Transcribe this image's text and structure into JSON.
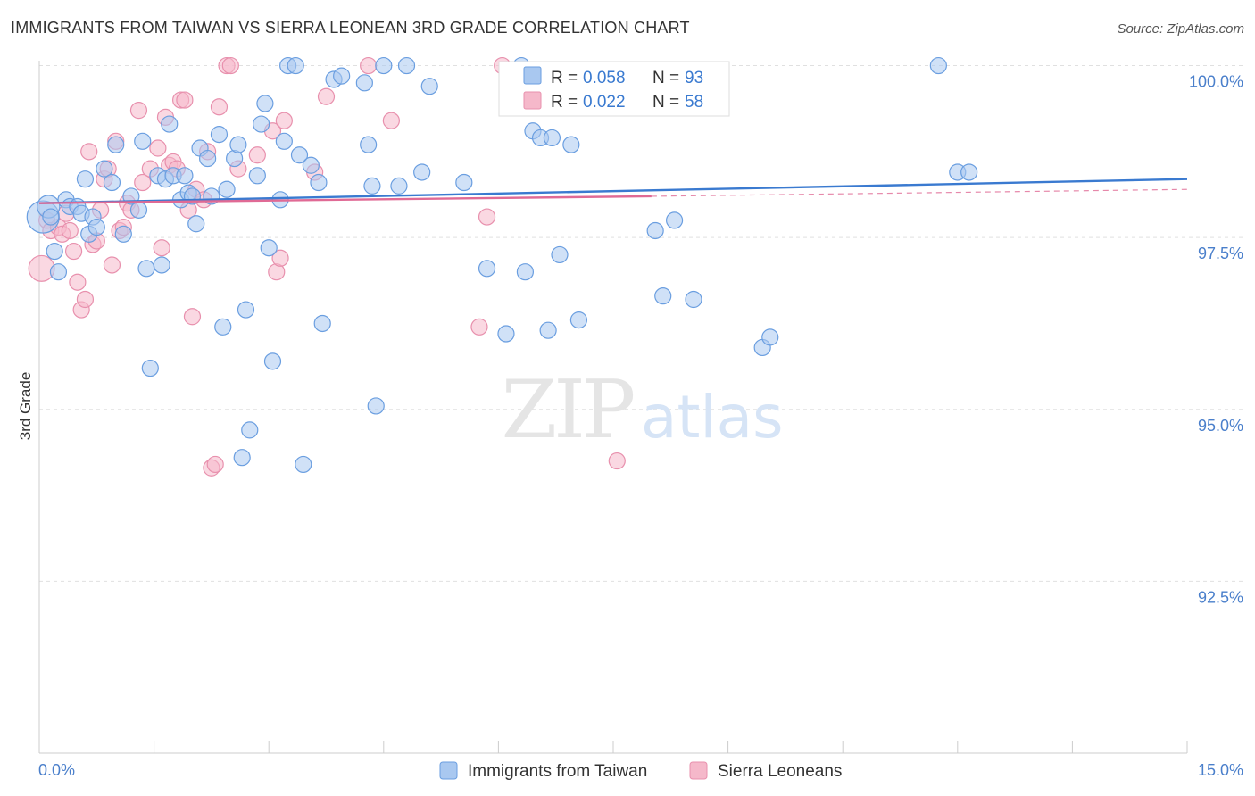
{
  "title": "IMMIGRANTS FROM TAIWAN VS SIERRA LEONEAN 3RD GRADE CORRELATION CHART",
  "source": "Source: ZipAtlas.com",
  "watermark": {
    "zip": "ZIP",
    "atlas": "atlas"
  },
  "colors": {
    "blue_fill": "#a9c8f0",
    "blue_stroke": "#6a9ee0",
    "blue_line": "#3a7ad0",
    "pink_fill": "#f5b8ca",
    "pink_stroke": "#e890ad",
    "pink_line": "#e06a95",
    "axis_label": "#4a7fcb",
    "grid": "#e0e0e0"
  },
  "stats_legend": {
    "rows": [
      {
        "r_label": "R = ",
        "r_value": "0.058",
        "n_label": "N = ",
        "n_value": "93",
        "series": "blue"
      },
      {
        "r_label": "R = ",
        "r_value": "0.022",
        "n_label": "N = ",
        "n_value": "58",
        "series": "pink"
      }
    ]
  },
  "bottom_legend": [
    {
      "label": "Immigrants from Taiwan",
      "series": "blue"
    },
    {
      "label": "Sierra Leoneans",
      "series": "pink"
    }
  ],
  "chart_data": {
    "type": "scatter",
    "title": "IMMIGRANTS FROM TAIWAN VS SIERRA LEONEAN 3RD GRADE CORRELATION CHART",
    "xlabel": "",
    "ylabel": "3rd Grade",
    "xlim": [
      0.0,
      15.0
    ],
    "ylim": [
      90.0,
      100.15
    ],
    "x_tick_labels": [
      "0.0%",
      "15.0%"
    ],
    "y_ticks": [
      92.5,
      95.0,
      97.5,
      100.0
    ],
    "y_tick_labels": [
      "92.5%",
      "95.0%",
      "97.5%",
      "100.0%"
    ],
    "grid": true,
    "series": [
      {
        "name": "Immigrants from Taiwan",
        "color": "blue",
        "trend": {
          "x": [
            0.0,
            15.0
          ],
          "y": [
            98.0,
            98.35
          ]
        },
        "points": [
          {
            "x": 0.05,
            "y": 97.8,
            "s": 2
          },
          {
            "x": 0.12,
            "y": 97.95,
            "s": 1.4
          },
          {
            "x": 0.15,
            "y": 97.8,
            "s": 1
          },
          {
            "x": 0.2,
            "y": 97.3,
            "s": 1
          },
          {
            "x": 0.25,
            "y": 97.0,
            "s": 1
          },
          {
            "x": 0.35,
            "y": 98.05,
            "s": 1
          },
          {
            "x": 0.4,
            "y": 97.95,
            "s": 1
          },
          {
            "x": 0.5,
            "y": 97.95,
            "s": 1
          },
          {
            "x": 0.55,
            "y": 97.85,
            "s": 1
          },
          {
            "x": 0.6,
            "y": 98.35,
            "s": 1
          },
          {
            "x": 0.65,
            "y": 97.55,
            "s": 1
          },
          {
            "x": 0.7,
            "y": 97.8,
            "s": 1
          },
          {
            "x": 0.75,
            "y": 97.65,
            "s": 1
          },
          {
            "x": 0.85,
            "y": 98.5,
            "s": 1
          },
          {
            "x": 0.95,
            "y": 98.3,
            "s": 1
          },
          {
            "x": 1.0,
            "y": 98.85,
            "s": 1
          },
          {
            "x": 1.1,
            "y": 97.55,
            "s": 1
          },
          {
            "x": 1.2,
            "y": 98.1,
            "s": 1
          },
          {
            "x": 1.3,
            "y": 97.9,
            "s": 1
          },
          {
            "x": 1.35,
            "y": 98.9,
            "s": 1
          },
          {
            "x": 1.4,
            "y": 97.05,
            "s": 1
          },
          {
            "x": 1.45,
            "y": 95.6,
            "s": 1
          },
          {
            "x": 1.55,
            "y": 98.4,
            "s": 1
          },
          {
            "x": 1.6,
            "y": 97.1,
            "s": 1
          },
          {
            "x": 1.65,
            "y": 98.35,
            "s": 1
          },
          {
            "x": 1.7,
            "y": 99.15,
            "s": 1
          },
          {
            "x": 1.75,
            "y": 98.4,
            "s": 1
          },
          {
            "x": 1.85,
            "y": 98.05,
            "s": 1
          },
          {
            "x": 1.9,
            "y": 98.4,
            "s": 1
          },
          {
            "x": 1.95,
            "y": 98.15,
            "s": 1
          },
          {
            "x": 2.0,
            "y": 98.1,
            "s": 1
          },
          {
            "x": 2.05,
            "y": 97.7,
            "s": 1
          },
          {
            "x": 2.1,
            "y": 98.8,
            "s": 1
          },
          {
            "x": 2.2,
            "y": 98.65,
            "s": 1
          },
          {
            "x": 2.25,
            "y": 98.1,
            "s": 1
          },
          {
            "x": 2.35,
            "y": 99.0,
            "s": 1
          },
          {
            "x": 2.4,
            "y": 96.2,
            "s": 1
          },
          {
            "x": 2.45,
            "y": 98.2,
            "s": 1
          },
          {
            "x": 2.55,
            "y": 98.65,
            "s": 1
          },
          {
            "x": 2.6,
            "y": 98.85,
            "s": 1
          },
          {
            "x": 2.65,
            "y": 94.3,
            "s": 1
          },
          {
            "x": 2.7,
            "y": 96.45,
            "s": 1
          },
          {
            "x": 2.75,
            "y": 94.7,
            "s": 1
          },
          {
            "x": 2.85,
            "y": 98.4,
            "s": 1
          },
          {
            "x": 2.9,
            "y": 99.15,
            "s": 1
          },
          {
            "x": 2.95,
            "y": 99.45,
            "s": 1
          },
          {
            "x": 3.0,
            "y": 97.35,
            "s": 1
          },
          {
            "x": 3.05,
            "y": 95.7,
            "s": 1
          },
          {
            "x": 3.15,
            "y": 98.05,
            "s": 1
          },
          {
            "x": 3.2,
            "y": 98.9,
            "s": 1
          },
          {
            "x": 3.25,
            "y": 100.0,
            "s": 1
          },
          {
            "x": 3.35,
            "y": 100.0,
            "s": 1
          },
          {
            "x": 3.4,
            "y": 98.7,
            "s": 1
          },
          {
            "x": 3.45,
            "y": 94.2,
            "s": 1
          },
          {
            "x": 3.55,
            "y": 98.55,
            "s": 1
          },
          {
            "x": 3.65,
            "y": 98.3,
            "s": 1
          },
          {
            "x": 3.7,
            "y": 96.25,
            "s": 1
          },
          {
            "x": 3.85,
            "y": 99.8,
            "s": 1
          },
          {
            "x": 3.95,
            "y": 99.85,
            "s": 1
          },
          {
            "x": 4.25,
            "y": 99.75,
            "s": 1
          },
          {
            "x": 4.3,
            "y": 98.85,
            "s": 1
          },
          {
            "x": 4.35,
            "y": 98.25,
            "s": 1
          },
          {
            "x": 4.4,
            "y": 95.05,
            "s": 1
          },
          {
            "x": 4.5,
            "y": 100.0,
            "s": 1
          },
          {
            "x": 4.7,
            "y": 98.25,
            "s": 1
          },
          {
            "x": 4.8,
            "y": 100.0,
            "s": 1
          },
          {
            "x": 5.0,
            "y": 98.45,
            "s": 1
          },
          {
            "x": 5.1,
            "y": 99.7,
            "s": 1
          },
          {
            "x": 5.55,
            "y": 98.3,
            "s": 1
          },
          {
            "x": 5.85,
            "y": 97.05,
            "s": 1
          },
          {
            "x": 6.1,
            "y": 96.1,
            "s": 1
          },
          {
            "x": 6.3,
            "y": 100.0,
            "s": 1
          },
          {
            "x": 6.35,
            "y": 97.0,
            "s": 1
          },
          {
            "x": 6.45,
            "y": 99.05,
            "s": 1
          },
          {
            "x": 6.55,
            "y": 98.95,
            "s": 1
          },
          {
            "x": 6.65,
            "y": 96.15,
            "s": 1
          },
          {
            "x": 6.7,
            "y": 98.95,
            "s": 1
          },
          {
            "x": 6.8,
            "y": 97.25,
            "s": 1
          },
          {
            "x": 6.95,
            "y": 98.85,
            "s": 1
          },
          {
            "x": 7.05,
            "y": 96.3,
            "s": 1
          },
          {
            "x": 8.05,
            "y": 97.6,
            "s": 1
          },
          {
            "x": 8.15,
            "y": 96.65,
            "s": 1
          },
          {
            "x": 8.3,
            "y": 97.75,
            "s": 1
          },
          {
            "x": 8.55,
            "y": 96.6,
            "s": 1
          },
          {
            "x": 9.45,
            "y": 95.9,
            "s": 1
          },
          {
            "x": 9.55,
            "y": 96.05,
            "s": 1
          },
          {
            "x": 11.75,
            "y": 100.0,
            "s": 1
          },
          {
            "x": 12.0,
            "y": 98.45,
            "s": 1
          },
          {
            "x": 12.15,
            "y": 98.45,
            "s": 1
          }
        ]
      },
      {
        "name": "Sierra Leoneans",
        "color": "pink",
        "trend": {
          "x": [
            0.0,
            8.0
          ],
          "y": [
            98.0,
            98.1
          ]
        },
        "trend_dashed": {
          "x": [
            8.0,
            15.0
          ],
          "y": [
            98.1,
            98.2
          ]
        },
        "points": [
          {
            "x": 0.03,
            "y": 97.05,
            "s": 1.6
          },
          {
            "x": 0.1,
            "y": 97.75,
            "s": 1
          },
          {
            "x": 0.15,
            "y": 97.6,
            "s": 1
          },
          {
            "x": 0.25,
            "y": 97.65,
            "s": 1
          },
          {
            "x": 0.3,
            "y": 97.55,
            "s": 1
          },
          {
            "x": 0.35,
            "y": 97.85,
            "s": 1
          },
          {
            "x": 0.4,
            "y": 97.6,
            "s": 1
          },
          {
            "x": 0.45,
            "y": 97.3,
            "s": 1
          },
          {
            "x": 0.5,
            "y": 96.85,
            "s": 1
          },
          {
            "x": 0.55,
            "y": 96.45,
            "s": 1
          },
          {
            "x": 0.6,
            "y": 96.6,
            "s": 1
          },
          {
            "x": 0.65,
            "y": 98.75,
            "s": 1
          },
          {
            "x": 0.7,
            "y": 97.4,
            "s": 1
          },
          {
            "x": 0.75,
            "y": 97.45,
            "s": 1
          },
          {
            "x": 0.8,
            "y": 97.9,
            "s": 1
          },
          {
            "x": 0.85,
            "y": 98.35,
            "s": 1
          },
          {
            "x": 0.9,
            "y": 98.5,
            "s": 1
          },
          {
            "x": 0.95,
            "y": 97.1,
            "s": 1
          },
          {
            "x": 1.0,
            "y": 98.9,
            "s": 1
          },
          {
            "x": 1.05,
            "y": 97.6,
            "s": 1
          },
          {
            "x": 1.1,
            "y": 97.65,
            "s": 1
          },
          {
            "x": 1.15,
            "y": 98.0,
            "s": 1
          },
          {
            "x": 1.2,
            "y": 97.9,
            "s": 1
          },
          {
            "x": 1.3,
            "y": 99.35,
            "s": 1
          },
          {
            "x": 1.35,
            "y": 98.3,
            "s": 1
          },
          {
            "x": 1.45,
            "y": 98.5,
            "s": 1
          },
          {
            "x": 1.55,
            "y": 98.8,
            "s": 1
          },
          {
            "x": 1.6,
            "y": 97.35,
            "s": 1
          },
          {
            "x": 1.65,
            "y": 99.25,
            "s": 1
          },
          {
            "x": 1.7,
            "y": 98.55,
            "s": 1
          },
          {
            "x": 1.75,
            "y": 98.6,
            "s": 1
          },
          {
            "x": 1.8,
            "y": 98.5,
            "s": 1
          },
          {
            "x": 1.85,
            "y": 99.5,
            "s": 1
          },
          {
            "x": 1.9,
            "y": 99.5,
            "s": 1
          },
          {
            "x": 1.95,
            "y": 97.9,
            "s": 1
          },
          {
            "x": 2.0,
            "y": 96.35,
            "s": 1
          },
          {
            "x": 2.05,
            "y": 98.2,
            "s": 1
          },
          {
            "x": 2.15,
            "y": 98.05,
            "s": 1
          },
          {
            "x": 2.2,
            "y": 98.75,
            "s": 1
          },
          {
            "x": 2.25,
            "y": 94.15,
            "s": 1
          },
          {
            "x": 2.3,
            "y": 94.2,
            "s": 1
          },
          {
            "x": 2.35,
            "y": 99.4,
            "s": 1
          },
          {
            "x": 2.45,
            "y": 100.0,
            "s": 1
          },
          {
            "x": 2.5,
            "y": 100.0,
            "s": 1
          },
          {
            "x": 2.6,
            "y": 98.5,
            "s": 1
          },
          {
            "x": 2.85,
            "y": 98.7,
            "s": 1
          },
          {
            "x": 3.05,
            "y": 99.05,
            "s": 1
          },
          {
            "x": 3.1,
            "y": 97.0,
            "s": 1
          },
          {
            "x": 3.15,
            "y": 97.2,
            "s": 1
          },
          {
            "x": 3.2,
            "y": 99.2,
            "s": 1
          },
          {
            "x": 3.6,
            "y": 98.45,
            "s": 1
          },
          {
            "x": 3.75,
            "y": 99.55,
            "s": 1
          },
          {
            "x": 4.3,
            "y": 100.0,
            "s": 1
          },
          {
            "x": 4.6,
            "y": 99.2,
            "s": 1
          },
          {
            "x": 5.75,
            "y": 96.2,
            "s": 1
          },
          {
            "x": 5.85,
            "y": 97.8,
            "s": 1
          },
          {
            "x": 6.05,
            "y": 100.0,
            "s": 1
          },
          {
            "x": 7.55,
            "y": 94.25,
            "s": 1
          }
        ]
      }
    ]
  }
}
